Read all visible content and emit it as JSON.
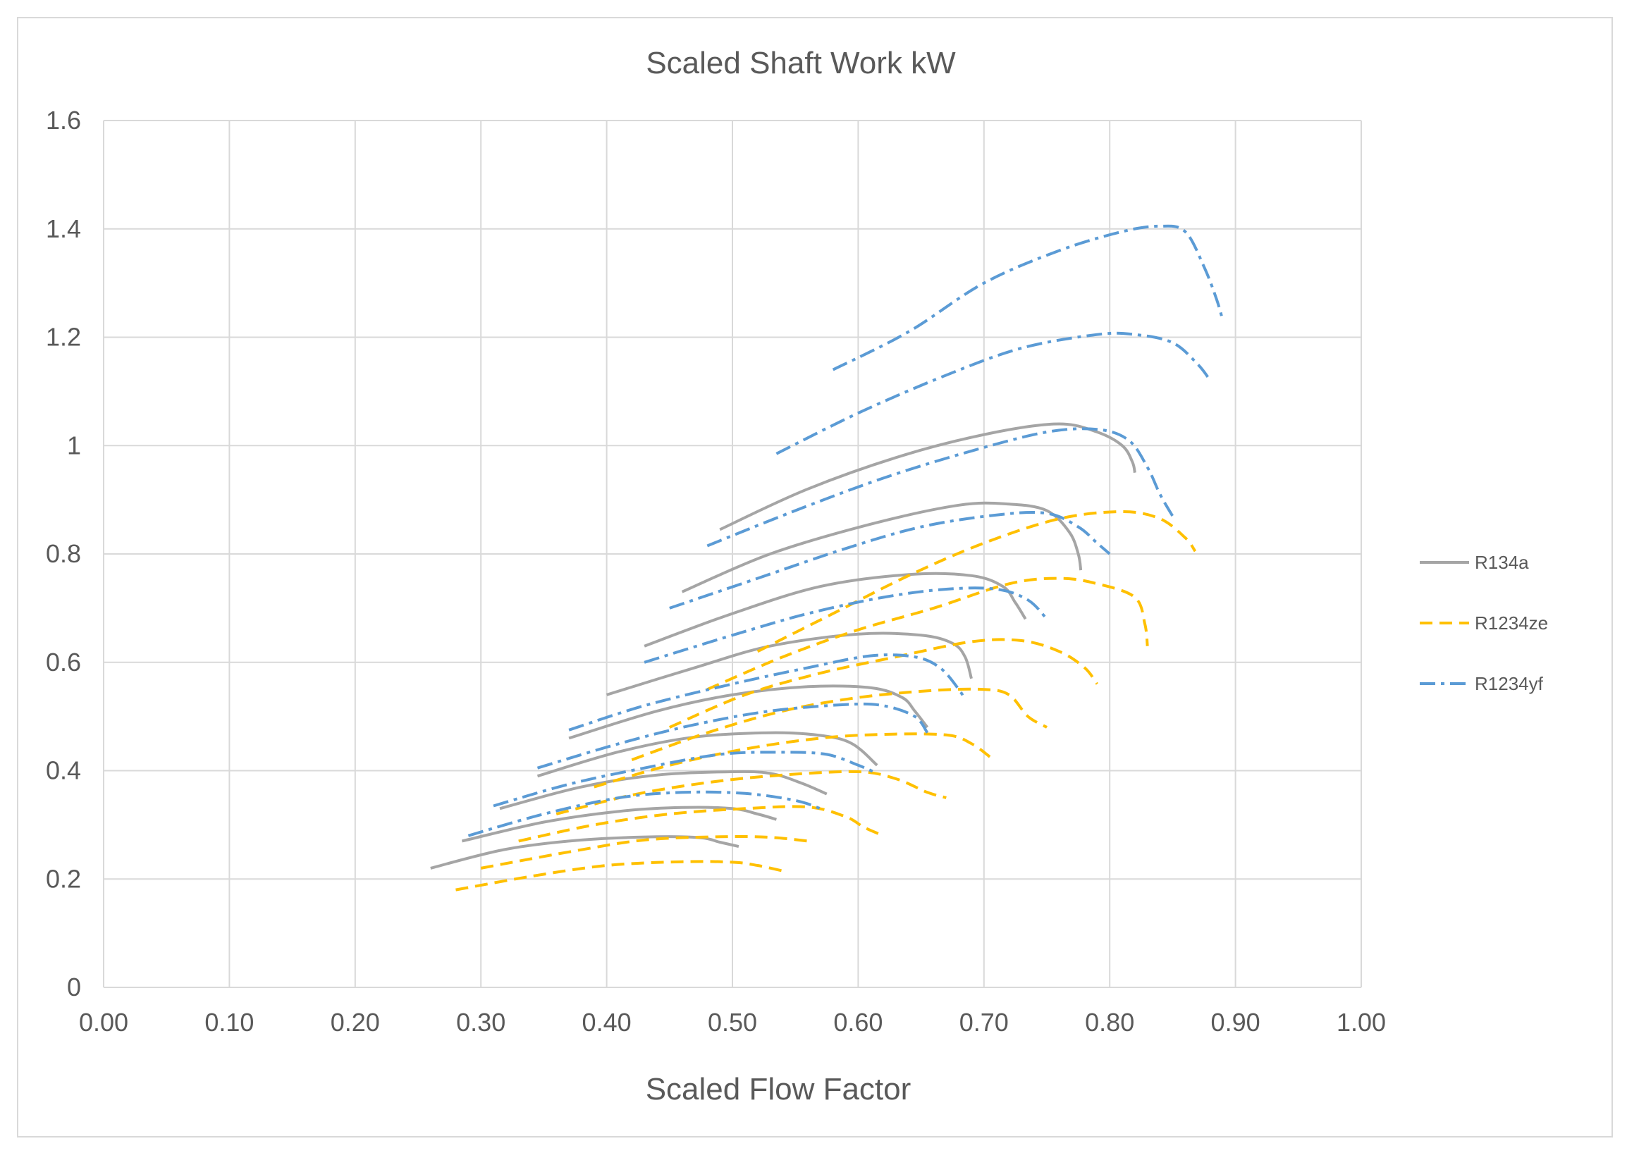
{
  "chart_data": {
    "type": "line",
    "title": "Scaled Shaft Work kW",
    "xlabel": "Scaled Flow Factor",
    "ylabel": "",
    "xlim": [
      0,
      1
    ],
    "ylim": [
      0,
      1.6
    ],
    "x_ticks": [
      "0.00",
      "0.10",
      "0.20",
      "0.30",
      "0.40",
      "0.50",
      "0.60",
      "0.70",
      "0.80",
      "0.90",
      "1.00"
    ],
    "y_ticks": [
      "0",
      "0.2",
      "0.4",
      "0.6",
      "0.8",
      "1",
      "1.2",
      "1.4",
      "1.6"
    ],
    "grid": true,
    "legend_position": "right",
    "series": [
      {
        "name": "R134a",
        "color": "#a5a5a5",
        "dash": "solid",
        "curves": [
          [
            [
              0.26,
              0.22
            ],
            [
              0.32,
              0.255
            ],
            [
              0.38,
              0.272
            ],
            [
              0.44,
              0.278
            ],
            [
              0.475,
              0.276
            ],
            [
              0.49,
              0.268
            ],
            [
              0.505,
              0.26
            ]
          ],
          [
            [
              0.285,
              0.27
            ],
            [
              0.35,
              0.305
            ],
            [
              0.41,
              0.325
            ],
            [
              0.46,
              0.332
            ],
            [
              0.5,
              0.33
            ],
            [
              0.52,
              0.32
            ],
            [
              0.535,
              0.31
            ]
          ],
          [
            [
              0.315,
              0.33
            ],
            [
              0.38,
              0.37
            ],
            [
              0.44,
              0.392
            ],
            [
              0.5,
              0.398
            ],
            [
              0.53,
              0.395
            ],
            [
              0.555,
              0.377
            ],
            [
              0.575,
              0.357
            ]
          ],
          [
            [
              0.345,
              0.39
            ],
            [
              0.41,
              0.435
            ],
            [
              0.47,
              0.462
            ],
            [
              0.53,
              0.47
            ],
            [
              0.57,
              0.465
            ],
            [
              0.595,
              0.45
            ],
            [
              0.615,
              0.41
            ]
          ],
          [
            [
              0.37,
              0.46
            ],
            [
              0.44,
              0.51
            ],
            [
              0.5,
              0.54
            ],
            [
              0.56,
              0.555
            ],
            [
              0.61,
              0.553
            ],
            [
              0.635,
              0.535
            ],
            [
              0.645,
              0.51
            ],
            [
              0.655,
              0.48
            ]
          ],
          [
            [
              0.4,
              0.54
            ],
            [
              0.47,
              0.59
            ],
            [
              0.53,
              0.63
            ],
            [
              0.6,
              0.652
            ],
            [
              0.65,
              0.65
            ],
            [
              0.675,
              0.635
            ],
            [
              0.685,
              0.61
            ],
            [
              0.69,
              0.57
            ]
          ],
          [
            [
              0.43,
              0.63
            ],
            [
              0.5,
              0.69
            ],
            [
              0.57,
              0.74
            ],
            [
              0.64,
              0.762
            ],
            [
              0.69,
              0.76
            ],
            [
              0.715,
              0.74
            ],
            [
              0.725,
              0.71
            ],
            [
              0.733,
              0.68
            ]
          ],
          [
            [
              0.46,
              0.73
            ],
            [
              0.53,
              0.8
            ],
            [
              0.61,
              0.855
            ],
            [
              0.68,
              0.89
            ],
            [
              0.72,
              0.892
            ],
            [
              0.75,
              0.88
            ],
            [
              0.768,
              0.84
            ],
            [
              0.775,
              0.8
            ],
            [
              0.777,
              0.77
            ]
          ],
          [
            [
              0.49,
              0.845
            ],
            [
              0.56,
              0.92
            ],
            [
              0.64,
              0.985
            ],
            [
              0.71,
              1.025
            ],
            [
              0.76,
              1.04
            ],
            [
              0.79,
              1.025
            ],
            [
              0.81,
              1.0
            ],
            [
              0.818,
              0.97
            ],
            [
              0.82,
              0.95
            ]
          ]
        ]
      },
      {
        "name": "R1234ze",
        "color": "#ffc000",
        "dash": "dashed",
        "curves": [
          [
            [
              0.28,
              0.18
            ],
            [
              0.34,
              0.205
            ],
            [
              0.4,
              0.225
            ],
            [
              0.46,
              0.232
            ],
            [
              0.5,
              0.231
            ],
            [
              0.52,
              0.225
            ],
            [
              0.54,
              0.215
            ]
          ],
          [
            [
              0.3,
              0.22
            ],
            [
              0.37,
              0.25
            ],
            [
              0.43,
              0.272
            ],
            [
              0.49,
              0.278
            ],
            [
              0.53,
              0.277
            ],
            [
              0.56,
              0.27
            ]
          ],
          [
            [
              0.33,
              0.27
            ],
            [
              0.39,
              0.3
            ],
            [
              0.45,
              0.32
            ],
            [
              0.51,
              0.33
            ],
            [
              0.56,
              0.333
            ],
            [
              0.59,
              0.315
            ],
            [
              0.605,
              0.295
            ],
            [
              0.62,
              0.28
            ]
          ],
          [
            [
              0.36,
              0.32
            ],
            [
              0.42,
              0.355
            ],
            [
              0.48,
              0.378
            ],
            [
              0.54,
              0.392
            ],
            [
              0.6,
              0.398
            ],
            [
              0.63,
              0.385
            ],
            [
              0.655,
              0.36
            ],
            [
              0.67,
              0.35
            ]
          ],
          [
            [
              0.39,
              0.37
            ],
            [
              0.45,
              0.41
            ],
            [
              0.51,
              0.44
            ],
            [
              0.57,
              0.46
            ],
            [
              0.62,
              0.467
            ],
            [
              0.67,
              0.466
            ],
            [
              0.69,
              0.45
            ],
            [
              0.705,
              0.425
            ]
          ],
          [
            [
              0.42,
              0.42
            ],
            [
              0.48,
              0.47
            ],
            [
              0.54,
              0.51
            ],
            [
              0.6,
              0.535
            ],
            [
              0.66,
              0.548
            ],
            [
              0.7,
              0.55
            ],
            [
              0.72,
              0.54
            ],
            [
              0.735,
              0.5
            ],
            [
              0.75,
              0.48
            ]
          ],
          [
            [
              0.45,
              0.48
            ],
            [
              0.51,
              0.54
            ],
            [
              0.57,
              0.58
            ],
            [
              0.63,
              0.61
            ],
            [
              0.69,
              0.638
            ],
            [
              0.73,
              0.64
            ],
            [
              0.76,
              0.62
            ],
            [
              0.78,
              0.59
            ],
            [
              0.79,
              0.56
            ]
          ],
          [
            [
              0.48,
              0.55
            ],
            [
              0.54,
              0.61
            ],
            [
              0.6,
              0.66
            ],
            [
              0.66,
              0.7
            ],
            [
              0.72,
              0.745
            ],
            [
              0.76,
              0.755
            ],
            [
              0.79,
              0.745
            ],
            [
              0.82,
              0.72
            ],
            [
              0.828,
              0.67
            ],
            [
              0.83,
              0.63
            ]
          ],
          [
            [
              0.52,
              0.62
            ],
            [
              0.58,
              0.69
            ],
            [
              0.64,
              0.76
            ],
            [
              0.7,
              0.82
            ],
            [
              0.76,
              0.865
            ],
            [
              0.81,
              0.878
            ],
            [
              0.84,
              0.865
            ],
            [
              0.86,
              0.83
            ],
            [
              0.868,
              0.805
            ]
          ]
        ]
      },
      {
        "name": "R1234yf",
        "color": "#5b9bd5",
        "dash": "dashdot",
        "curves": [
          [
            [
              0.29,
              0.28
            ],
            [
              0.35,
              0.32
            ],
            [
              0.41,
              0.35
            ],
            [
              0.46,
              0.36
            ],
            [
              0.51,
              0.358
            ],
            [
              0.55,
              0.345
            ],
            [
              0.57,
              0.33
            ]
          ],
          [
            [
              0.31,
              0.335
            ],
            [
              0.37,
              0.375
            ],
            [
              0.43,
              0.405
            ],
            [
              0.49,
              0.43
            ],
            [
              0.54,
              0.434
            ],
            [
              0.575,
              0.43
            ],
            [
              0.6,
              0.41
            ],
            [
              0.615,
              0.395
            ]
          ],
          [
            [
              0.345,
              0.405
            ],
            [
              0.41,
              0.45
            ],
            [
              0.47,
              0.485
            ],
            [
              0.53,
              0.51
            ],
            [
              0.59,
              0.522
            ],
            [
              0.62,
              0.52
            ],
            [
              0.645,
              0.5
            ],
            [
              0.655,
              0.47
            ]
          ],
          [
            [
              0.37,
              0.475
            ],
            [
              0.43,
              0.52
            ],
            [
              0.5,
              0.56
            ],
            [
              0.56,
              0.59
            ],
            [
              0.61,
              0.612
            ],
            [
              0.645,
              0.61
            ],
            [
              0.665,
              0.59
            ],
            [
              0.68,
              0.55
            ],
            [
              0.685,
              0.53
            ]
          ],
          [
            [
              0.43,
              0.6
            ],
            [
              0.5,
              0.65
            ],
            [
              0.56,
              0.69
            ],
            [
              0.62,
              0.72
            ],
            [
              0.67,
              0.735
            ],
            [
              0.71,
              0.735
            ],
            [
              0.735,
              0.715
            ],
            [
              0.75,
              0.68
            ]
          ],
          [
            [
              0.45,
              0.7
            ],
            [
              0.52,
              0.755
            ],
            [
              0.59,
              0.81
            ],
            [
              0.65,
              0.85
            ],
            [
              0.71,
              0.872
            ],
            [
              0.75,
              0.875
            ],
            [
              0.775,
              0.85
            ],
            [
              0.79,
              0.82
            ],
            [
              0.8,
              0.8
            ]
          ],
          [
            [
              0.48,
              0.815
            ],
            [
              0.55,
              0.88
            ],
            [
              0.62,
              0.94
            ],
            [
              0.69,
              0.99
            ],
            [
              0.75,
              1.025
            ],
            [
              0.79,
              1.03
            ],
            [
              0.815,
              1.01
            ],
            [
              0.83,
              0.96
            ],
            [
              0.84,
              0.91
            ],
            [
              0.85,
              0.87
            ]
          ],
          [
            [
              0.535,
              0.985
            ],
            [
              0.6,
              1.06
            ],
            [
              0.67,
              1.13
            ],
            [
              0.73,
              1.18
            ],
            [
              0.79,
              1.205
            ],
            [
              0.82,
              1.205
            ],
            [
              0.85,
              1.19
            ],
            [
              0.87,
              1.15
            ],
            [
              0.88,
              1.12
            ]
          ],
          [
            [
              0.58,
              1.14
            ],
            [
              0.64,
              1.21
            ],
            [
              0.7,
              1.3
            ],
            [
              0.76,
              1.36
            ],
            [
              0.81,
              1.395
            ],
            [
              0.84,
              1.405
            ],
            [
              0.86,
              1.395
            ],
            [
              0.875,
              1.33
            ],
            [
              0.885,
              1.27
            ],
            [
              0.89,
              1.23
            ]
          ]
        ]
      }
    ]
  }
}
